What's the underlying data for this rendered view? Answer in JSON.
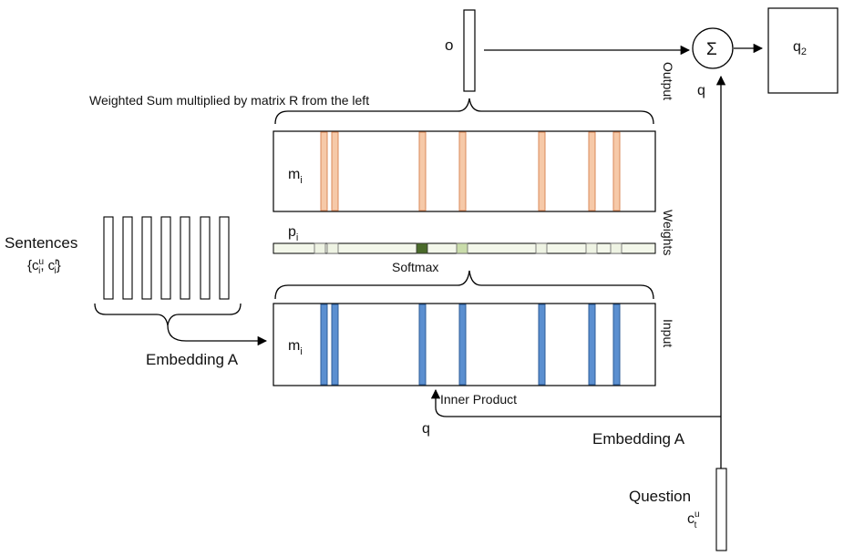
{
  "labels": {
    "o": "o",
    "sigma": "Σ",
    "q2_base": "q",
    "q2_sub": "2",
    "output": "Output",
    "q_right": "q",
    "weighted_sum": "Weighted Sum multiplied by matrix R from the left",
    "m_top_base": "m",
    "m_top_sub": "i",
    "weights": "Weights",
    "p_base": "p",
    "p_sub": "i",
    "softmax": "Softmax",
    "sentences": "Sentences",
    "sentences_set_open": "{c",
    "sentences_set_u_sup": "u",
    "sentences_set_i_sub1": "i",
    "sentences_set_mid": ", c",
    "sentences_set_r_sup": "r",
    "sentences_set_i_sub2": "i",
    "sentences_set_close": "}",
    "embedding_a_left": "Embedding A",
    "m_bottom_base": "m",
    "m_bottom_sub": "i",
    "input": "Input",
    "inner_product": "Inner Product",
    "q_left": "q",
    "embedding_a_right": "Embedding A",
    "question": "Question",
    "question_c": "c",
    "question_sup": "u",
    "question_sub": "t"
  },
  "colors": {
    "output_stripe": "#f6c9a8",
    "output_stripe_edge": "#d9895a",
    "input_stripe": "#5b8fd0",
    "input_stripe_edge": "#2d5d99",
    "weight_bar_fill": "#f3f7ea",
    "weight_dark": "#4a6a2a",
    "weight_mid": "#c9dcaa",
    "weight_light": "#eef3e3"
  },
  "icons": [
    "sum-icon",
    "arrow-icon",
    "brace-icon"
  ]
}
